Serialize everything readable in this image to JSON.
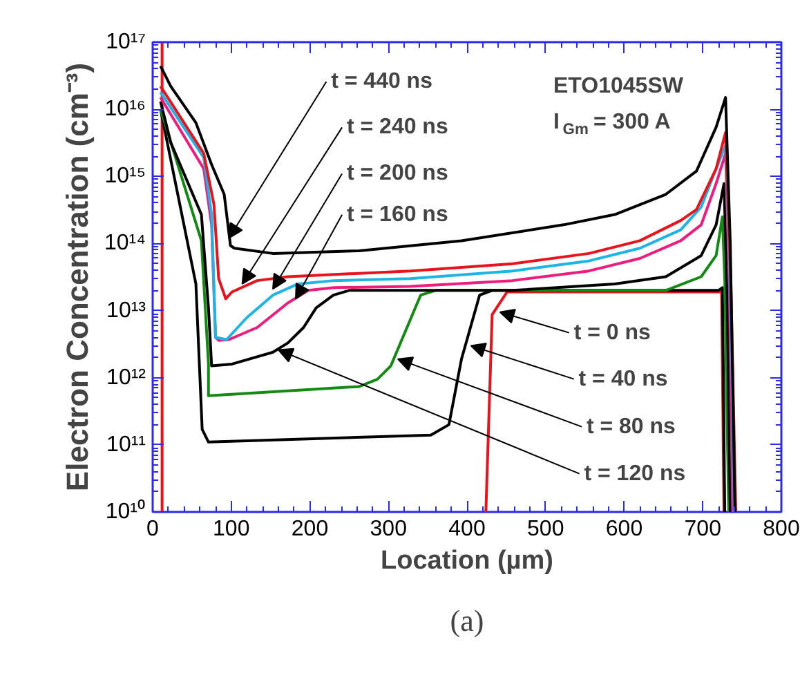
{
  "chart_data": {
    "type": "line",
    "xlabel": "Location (µm)",
    "ylabel": "Electron Concentration (cm⁻³)",
    "log": "y",
    "xlim": [
      0,
      800
    ],
    "ylim": [
      10000000000.0,
      1e+17
    ],
    "xticks": [
      0,
      100,
      200,
      300,
      400,
      500,
      600,
      700,
      800
    ],
    "yticks": [
      {
        "value": 10000000000.0,
        "label": "10¹⁰"
      },
      {
        "value": 100000000000.0,
        "label": "10¹¹"
      },
      {
        "value": 1000000000000.0,
        "label": "10¹²"
      },
      {
        "value": 10000000000000.0,
        "label": "10¹³"
      },
      {
        "value": 100000000000000.0,
        "label": "10¹⁴"
      },
      {
        "value": 1000000000000000.0,
        "label": "10¹⁵"
      },
      {
        "value": 1e+16,
        "label": "10¹⁶"
      },
      {
        "value": 1e+17,
        "label": "10¹⁷"
      }
    ],
    "grid": false,
    "line_style": "solid",
    "series": [
      {
        "color": "#e8141c",
        "x": [
          12,
          12,
          13,
          424,
          432,
          451,
          724,
          727
        ],
        "values": [
          10000000000.0,
          1e+17,
          null,
          10000000000.0,
          8700000000000.0,
          19000000000000.0,
          19000000000000.0,
          10000000000.0
        ]
      },
      {
        "color": "#000000",
        "x": [
          10,
          55,
          63,
          71,
          354,
          377,
          393,
          416,
          432,
          720,
          725,
          728
        ],
        "values": [
          1e+16,
          25000000000000.0,
          170000000000.0,
          110000000000.0,
          140000000000.0,
          200000000000.0,
          1900000000000.0,
          17000000000000.0,
          20000000000000.0,
          20000000000000.0,
          22000000000000.0,
          10000000000.0
        ]
      },
      {
        "color": "#138a13",
        "x": [
          10,
          62,
          71,
          71,
          263,
          286,
          303,
          341,
          360,
          653,
          698,
          717,
          725,
          728,
          733
        ],
        "values": [
          1e+16,
          110000000000000.0,
          1600000000000.0,
          540000000000.0,
          740000000000.0,
          950000000000.0,
          1500000000000.0,
          17000000000000.0,
          20000000000000.0,
          20000000000000.0,
          32000000000000.0,
          66000000000000.0,
          250000000000000.0,
          30000000000000.0,
          10000000000.0
        ]
      },
      {
        "color": "#000000",
        "x": [
          10,
          23,
          62,
          71,
          75,
          101,
          153,
          172,
          192,
          208,
          230,
          250,
          458,
          588,
          653,
          698,
          717,
          727,
          731,
          735
        ],
        "values": [
          1.3e+16,
          3200000000000000.0,
          270000000000000.0,
          11000000000000.0,
          1500000000000.0,
          1600000000000.0,
          2400000000000.0,
          3300000000000.0,
          5600000000000.0,
          11000000000000.0,
          17000000000000.0,
          20000000000000.0,
          20000000000000.0,
          25000000000000.0,
          32000000000000.0,
          66000000000000.0,
          190000000000000.0,
          780000000000000.0,
          20000000000000.0,
          10000000000.0
        ]
      },
      {
        "color": "#ee1c7c",
        "x": [
          10,
          65,
          75,
          80,
          84,
          97,
          133,
          172,
          198,
          231,
          328,
          458,
          555,
          620,
          672,
          698,
          717,
          729,
          734,
          738
        ],
        "values": [
          1.5e+16,
          1300000000000000.0,
          190000000000000.0,
          4000000000000.0,
          3600000000000.0,
          3700000000000.0,
          5600000000000.0,
          13000000000000.0,
          20000000000000.0,
          22000000000000.0,
          23000000000000.0,
          28000000000000.0,
          39000000000000.0,
          60000000000000.0,
          110000000000000.0,
          190000000000000.0,
          780000000000000.0,
          2200000000000000.0,
          20000000000000.0,
          10000000000.0
        ]
      },
      {
        "color": "#1eb4e6",
        "x": [
          10,
          65,
          75,
          80,
          94,
          120,
          153,
          185,
          231,
          328,
          458,
          555,
          620,
          672,
          698,
          717,
          729,
          735,
          740
        ],
        "values": [
          1.8e+16,
          1900000000000000.0,
          270000000000000.0,
          4000000000000.0,
          3700000000000.0,
          7900000000000.0,
          17000000000000.0,
          25000000000000.0,
          28000000000000.0,
          30000000000000.0,
          39000000000000.0,
          55000000000000.0,
          85000000000000.0,
          160000000000000.0,
          350000000000000.0,
          1300000000000000.0,
          2900000000000000.0,
          20000000000000.0,
          10000000000.0
        ]
      },
      {
        "color": "#e8141c",
        "x": [
          10,
          65,
          78,
          84,
          93,
          101,
          133,
          172,
          328,
          458,
          555,
          620,
          672,
          692,
          717,
          729,
          736,
          742
        ],
        "values": [
          2.2e+16,
          2200000000000000.0,
          380000000000000.0,
          30000000000000.0,
          15000000000000.0,
          19000000000000.0,
          28000000000000.0,
          32000000000000.0,
          39000000000000.0,
          50000000000000.0,
          71000000000000.0,
          110000000000000.0,
          220000000000000.0,
          320000000000000.0,
          1300000000000000.0,
          4500000000000000.0,
          20000000000000.0,
          10000000000.0
        ]
      },
      {
        "color": "#000000",
        "x": [
          10,
          23,
          55,
          75,
          91,
          99,
          104,
          153,
          263,
          393,
          523,
          588,
          653,
          692,
          717,
          729,
          735,
          741
        ],
        "values": [
          4.4e+16,
          2.2e+16,
          6300000000000000.0,
          1500000000000000.0,
          540000000000000.0,
          93000000000000.0,
          85000000000000.0,
          71000000000000.0,
          78000000000000.0,
          110000000000000.0,
          190000000000000.0,
          270000000000000.0,
          540000000000000.0,
          1200000000000000.0,
          5400000000000000.0,
          1.5e+16,
          100000000000000.0,
          10000000000.0
        ]
      }
    ],
    "annotations": [
      {
        "text": "t = 440 ns",
        "x": 97,
        "y": 120000000000000.0
      },
      {
        "text": "t = 240 ns",
        "x": 114,
        "y": 25000000000000.0
      },
      {
        "text": "t = 200 ns",
        "x": 153,
        "y": 21000000000000.0
      },
      {
        "text": "t = 160 ns",
        "x": 182,
        "y": 15000000000000.0
      },
      {
        "text": "t = 0 ns",
        "x": 442,
        "y": 9500000000000.0
      },
      {
        "text": "t = 40 ns",
        "x": 405,
        "y": 3000000000000.0
      },
      {
        "text": "t = 80 ns",
        "x": 312,
        "y": 1900000000000.0
      },
      {
        "text": "t = 120 ns",
        "x": 160,
        "y": 2600000000000.0
      },
      "ETO1045SW",
      "I$_{Gm}$ = 300 A",
      "(a)"
    ]
  }
}
